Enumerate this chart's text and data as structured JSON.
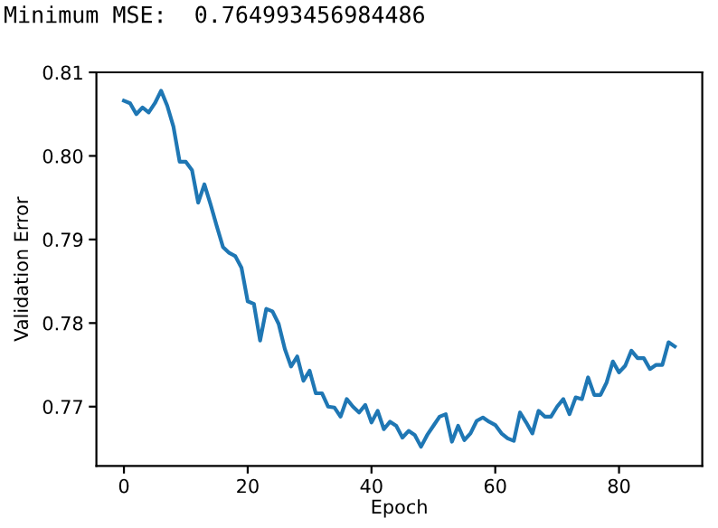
{
  "chart_data": {
    "type": "line",
    "title": "Minimum MSE:  0.764993456984486",
    "xlabel": "Epoch",
    "ylabel": "Validation Error",
    "x": [
      0,
      1,
      2,
      3,
      4,
      5,
      6,
      7,
      8,
      9,
      10,
      11,
      12,
      13,
      14,
      15,
      16,
      17,
      18,
      19,
      20,
      21,
      22,
      23,
      24,
      25,
      26,
      27,
      28,
      29,
      30,
      31,
      32,
      33,
      34,
      35,
      36,
      37,
      38,
      39,
      40,
      41,
      42,
      43,
      44,
      45,
      46,
      47,
      48,
      49,
      50,
      51,
      52,
      53,
      54,
      55,
      56,
      57,
      58,
      59,
      60,
      61,
      62,
      63,
      64,
      65,
      66,
      67,
      68,
      69,
      70,
      71,
      72,
      73,
      74,
      75,
      76,
      77,
      78,
      79,
      80,
      81,
      82,
      83,
      84,
      85,
      86,
      87,
      88,
      89
    ],
    "series": [
      {
        "color": "#1f77b4",
        "values": [
          0.8066,
          0.8063,
          0.805,
          0.8058,
          0.8052,
          0.8063,
          0.8078,
          0.806,
          0.8035,
          0.7993,
          0.7993,
          0.7983,
          0.7944,
          0.7966,
          0.7942,
          0.7916,
          0.7891,
          0.7884,
          0.788,
          0.7866,
          0.7826,
          0.7823,
          0.7779,
          0.7817,
          0.7814,
          0.7799,
          0.7769,
          0.7748,
          0.776,
          0.7731,
          0.7743,
          0.7716,
          0.7716,
          0.77,
          0.7699,
          0.7688,
          0.7709,
          0.77,
          0.7693,
          0.7702,
          0.7681,
          0.7695,
          0.7673,
          0.7682,
          0.7677,
          0.7663,
          0.7671,
          0.7666,
          0.7652,
          0.7666,
          0.7677,
          0.7688,
          0.7691,
          0.7658,
          0.7677,
          0.766,
          0.7668,
          0.7683,
          0.7687,
          0.7682,
          0.7678,
          0.7668,
          0.7662,
          0.7659,
          0.7693,
          0.7681,
          0.7668,
          0.7695,
          0.7688,
          0.7688,
          0.77,
          0.7709,
          0.7691,
          0.7711,
          0.7709,
          0.7735,
          0.7714,
          0.7714,
          0.7729,
          0.7754,
          0.7741,
          0.7749,
          0.7767,
          0.7758,
          0.7758,
          0.7745,
          0.775,
          0.775,
          0.7777,
          0.7772
        ]
      }
    ],
    "xlim": [
      -4.45,
      93.45
    ],
    "ylim": [
      0.7629,
      0.81
    ],
    "xticks": [
      0,
      20,
      40,
      60,
      80
    ],
    "yticks": [
      0.77,
      0.78,
      0.79,
      {
        "value": 0.8,
        "label": "0.80"
      },
      0.81
    ],
    "grid": false
  }
}
